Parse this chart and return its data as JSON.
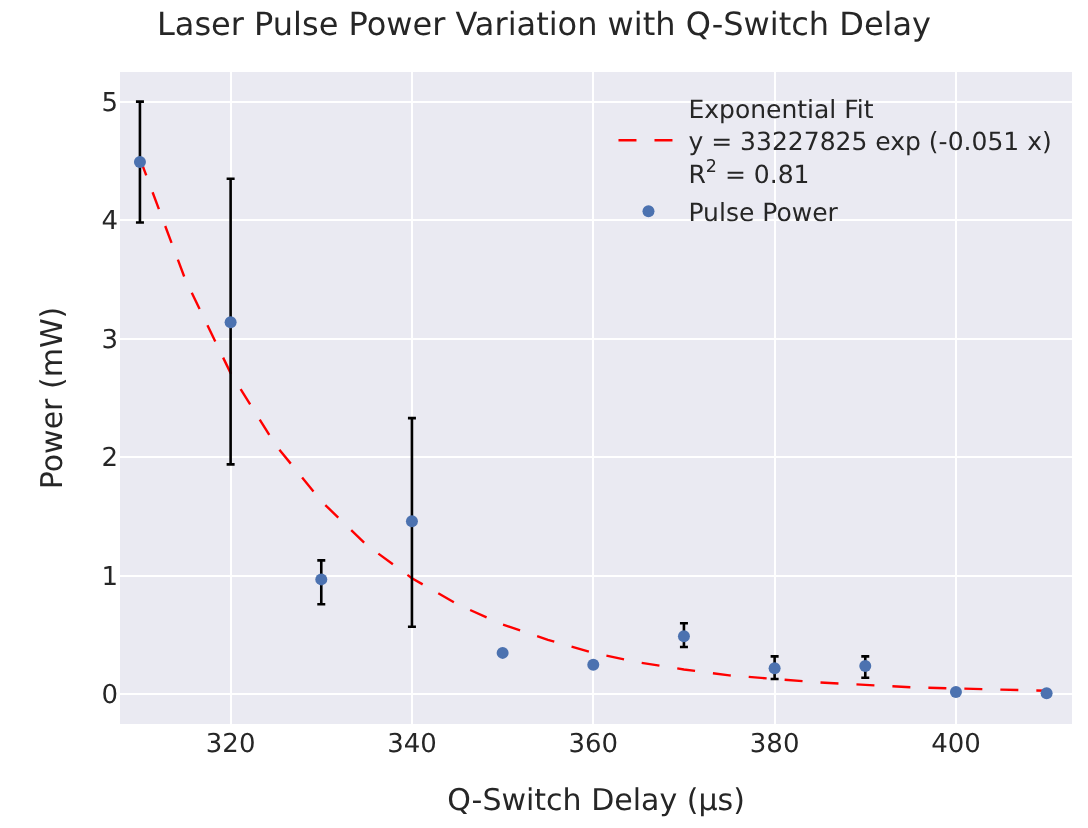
{
  "chart_data": {
    "type": "scatter",
    "title": "Laser Pulse Power Variation with Q-Switch Delay",
    "xlabel": "Q-Switch Delay (μs)",
    "ylabel": "Power (mW)",
    "xlim": [
      307.8,
      412.8
    ],
    "xticks": [
      320,
      340,
      360,
      380,
      400
    ],
    "ylim": [
      -0.25,
      5.25
    ],
    "yticks": [
      0,
      1,
      2,
      3,
      4,
      5
    ],
    "grid": true,
    "legend": "top right",
    "series": [
      {
        "name": "Exponential Fit\ny = 33227825 exp (-0.051 x)\nR$^{2}$ = 0.81",
        "type": "line",
        "line_style": "dashed",
        "color": "#ff0000",
        "x": [
          310,
          315,
          320,
          325,
          330,
          335,
          340,
          345,
          350,
          355,
          360,
          365,
          370,
          375,
          380,
          385,
          390,
          395,
          400,
          405,
          410
        ],
        "values": [
          4.52,
          3.5,
          2.71,
          2.1,
          1.63,
          1.26,
          0.98,
          0.76,
          0.59,
          0.46,
          0.35,
          0.27,
          0.21,
          0.16,
          0.13,
          0.1,
          0.08,
          0.06,
          0.05,
          0.04,
          0.03
        ]
      },
      {
        "name": "Pulse Power",
        "marker": "circle",
        "color": "#4c72b0",
        "x": [
          310,
          320,
          330,
          340,
          350,
          360,
          370,
          380,
          390,
          400,
          410
        ],
        "values": [
          4.49,
          3.14,
          0.97,
          1.46,
          0.35,
          0.25,
          0.49,
          0.22,
          0.24,
          0.02,
          0.01
        ],
        "errors": [
          [
            3.98,
            5.0
          ],
          [
            1.94,
            4.35
          ],
          [
            0.76,
            1.13
          ],
          [
            0.57,
            2.33
          ],
          null,
          null,
          [
            0.4,
            0.6
          ],
          [
            0.13,
            0.32
          ],
          [
            0.14,
            0.32
          ],
          null,
          null
        ]
      }
    ]
  }
}
